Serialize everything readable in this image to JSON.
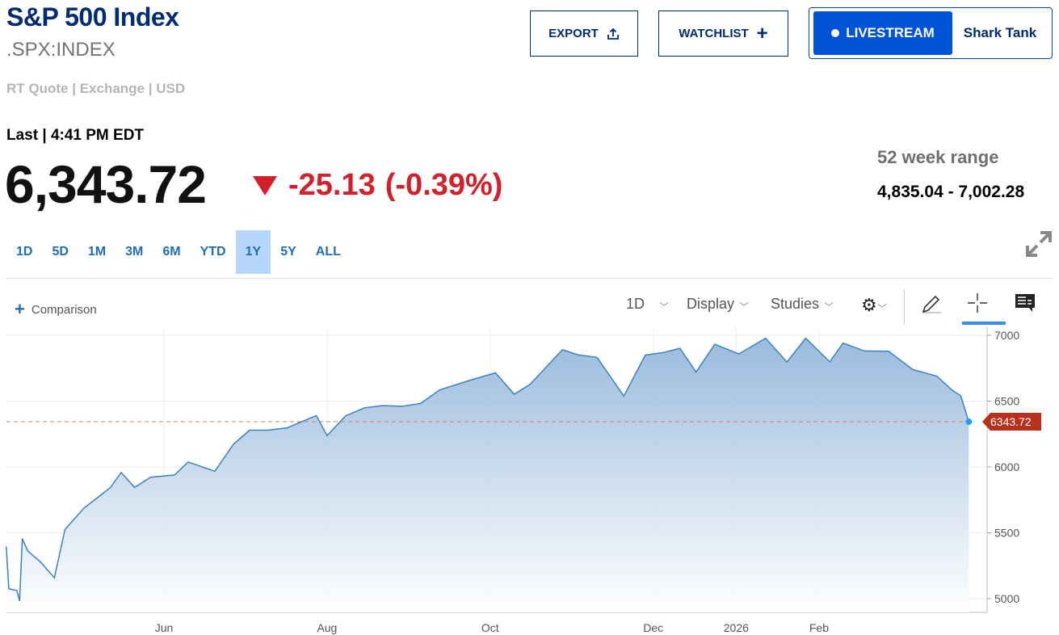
{
  "header": {
    "title": "S&P 500 Index",
    "symbol": ".SPX:INDEX",
    "quote_info": "RT Quote | Exchange | USD",
    "export_label": "EXPORT",
    "watchlist_label": "WATCHLIST",
    "livestream_label": "LIVESTREAM",
    "shark_tank_label": "Shark Tank"
  },
  "quote": {
    "last_label": "Last | 4:41 PM EDT",
    "price": "6,343.72",
    "change": "-25.13",
    "change_pct": "(-0.39%)",
    "range_label": "52 week range",
    "range_value": "4,835.04 - 7,002.28",
    "down_color": "#d3202a"
  },
  "ranges": [
    {
      "label": "1D"
    },
    {
      "label": "5D"
    },
    {
      "label": "1M"
    },
    {
      "label": "3M"
    },
    {
      "label": "6M"
    },
    {
      "label": "YTD"
    },
    {
      "label": "1Y",
      "active": true
    },
    {
      "label": "5Y"
    },
    {
      "label": "ALL"
    }
  ],
  "toolbar": {
    "comparison": "Comparison",
    "interval": "1D",
    "display": "Display",
    "studies": "Studies"
  },
  "chart_data": {
    "type": "area",
    "ylim": [
      4950,
      7060
    ],
    "yticks": [
      "5000",
      "5500",
      "6000",
      "6500",
      "7000"
    ],
    "xticks": [
      {
        "label": "Jun",
        "date": "2025-06-01"
      },
      {
        "label": "Aug",
        "date": "2025-08-01"
      },
      {
        "label": "Oct",
        "date": "2025-10-01"
      },
      {
        "label": "Dec",
        "date": "2025-12-01"
      },
      {
        "label": "2026",
        "date": "2026-01-01"
      },
      {
        "label": "Feb",
        "date": "2026-02-01"
      }
    ],
    "last_label": "6343.72",
    "last_value": 6343.72,
    "line_color": "#3a82c4",
    "last_badge_color": "#b6321c",
    "points": [
      [
        "2025-04-03",
        5396
      ],
      [
        "2025-04-04",
        5074
      ],
      [
        "2025-04-07",
        5062
      ],
      [
        "2025-04-08",
        4982
      ],
      [
        "2025-04-09",
        5456
      ],
      [
        "2025-04-11",
        5363
      ],
      [
        "2025-04-16",
        5275
      ],
      [
        "2025-04-21",
        5158
      ],
      [
        "2025-04-25",
        5525
      ],
      [
        "2025-05-02",
        5686
      ],
      [
        "2025-05-12",
        5844
      ],
      [
        "2025-05-16",
        5958
      ],
      [
        "2025-05-21",
        5845
      ],
      [
        "2025-05-27",
        5922
      ],
      [
        "2025-06-05",
        5939
      ],
      [
        "2025-06-10",
        6038
      ],
      [
        "2025-06-20",
        5967
      ],
      [
        "2025-06-27",
        6173
      ],
      [
        "2025-07-03",
        6279
      ],
      [
        "2025-07-10",
        6280
      ],
      [
        "2025-07-17",
        6297
      ],
      [
        "2025-07-28",
        6390
      ],
      [
        "2025-08-01",
        6238
      ],
      [
        "2025-08-08",
        6389
      ],
      [
        "2025-08-15",
        6449
      ],
      [
        "2025-08-22",
        6466
      ],
      [
        "2025-08-29",
        6460
      ],
      [
        "2025-09-05",
        6482
      ],
      [
        "2025-09-12",
        6584
      ],
      [
        "2025-09-23",
        6656
      ],
      [
        "2025-10-03",
        6715
      ],
      [
        "2025-10-10",
        6552
      ],
      [
        "2025-10-16",
        6629
      ],
      [
        "2025-10-28",
        6890
      ],
      [
        "2025-11-03",
        6851
      ],
      [
        "2025-11-10",
        6832
      ],
      [
        "2025-11-20",
        6538
      ],
      [
        "2025-11-28",
        6849
      ],
      [
        "2025-12-05",
        6870
      ],
      [
        "2025-12-11",
        6901
      ],
      [
        "2025-12-17",
        6721
      ],
      [
        "2025-12-24",
        6932
      ],
      [
        "2026-01-02",
        6858
      ],
      [
        "2026-01-12",
        6977
      ],
      [
        "2026-01-20",
        6797
      ],
      [
        "2026-01-27",
        6978
      ],
      [
        "2026-02-05",
        6798
      ],
      [
        "2026-02-10",
        6941
      ],
      [
        "2026-02-18",
        6881
      ],
      [
        "2026-02-27",
        6879
      ],
      [
        "2026-03-08",
        6740
      ],
      [
        "2026-03-17",
        6690
      ],
      [
        "2026-03-23",
        6580
      ],
      [
        "2026-03-26",
        6540
      ],
      [
        "2026-03-29",
        6343.72
      ]
    ]
  }
}
